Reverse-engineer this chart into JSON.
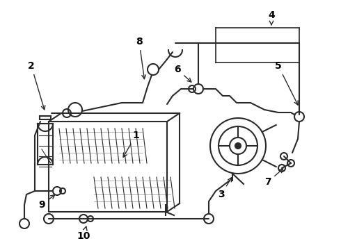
{
  "background_color": "#ffffff",
  "line_color": "#2a2a2a",
  "label_color": "#000000",
  "lw": 1.5,
  "lw_thin": 0.9
}
